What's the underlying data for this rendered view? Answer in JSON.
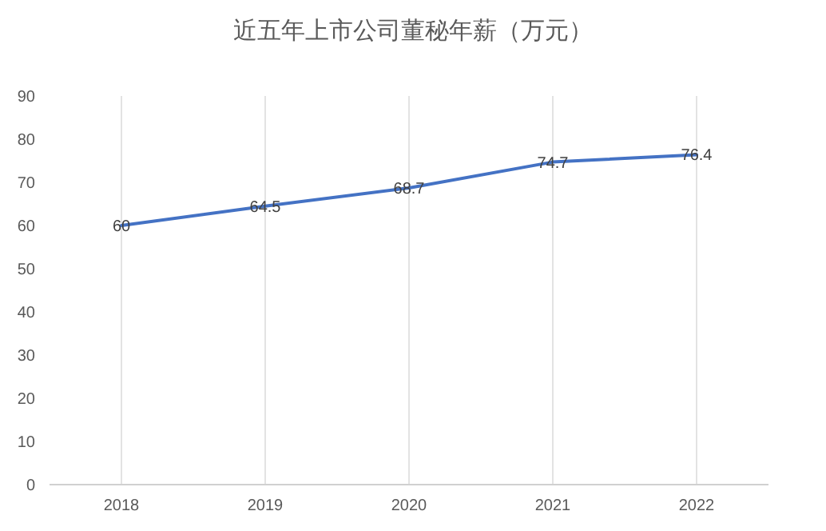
{
  "chart_data": {
    "type": "line",
    "title": "近五年上市公司董秘年薪（万元）",
    "categories": [
      "2018",
      "2019",
      "2020",
      "2021",
      "2022"
    ],
    "values": [
      60,
      64.5,
      68.7,
      74.7,
      76.4
    ],
    "color": "#4472c4",
    "ylim": [
      0,
      90
    ],
    "yticks": [
      0,
      10,
      20,
      30,
      40,
      50,
      60,
      70,
      80,
      90
    ],
    "grid": "x",
    "data_labels": true,
    "marker": "none",
    "line_style": "solid"
  }
}
